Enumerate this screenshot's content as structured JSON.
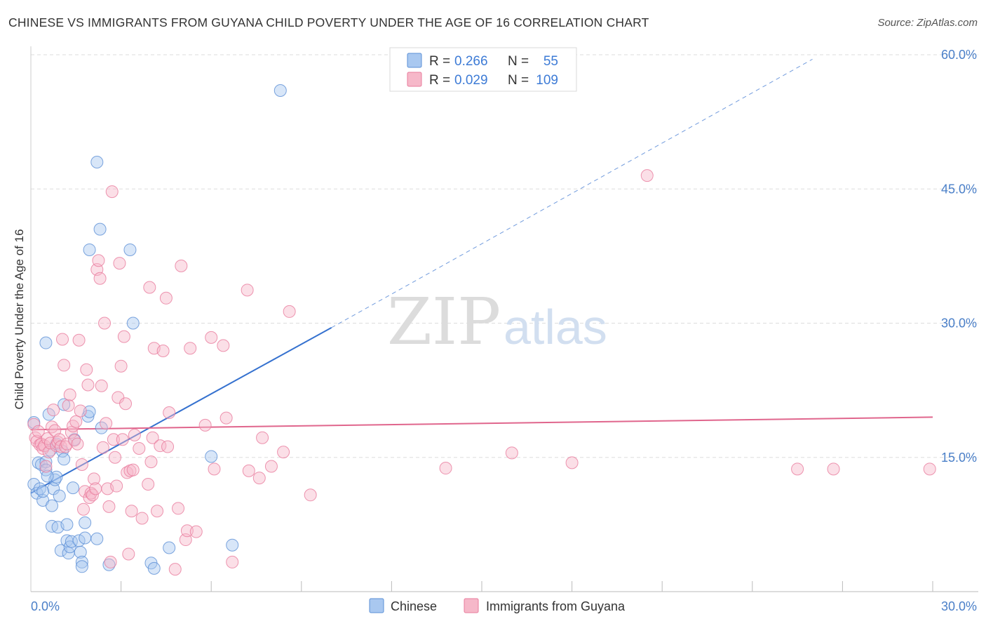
{
  "title": "CHINESE VS IMMIGRANTS FROM GUYANA CHILD POVERTY UNDER THE AGE OF 16 CORRELATION CHART",
  "source": "Source: ZipAtlas.com",
  "watermark": {
    "zip": "ZIP",
    "atlas": "atlas"
  },
  "colors": {
    "chinese_fill": "#a9c8f0",
    "chinese_stroke": "#5b8fd6",
    "chinese_line": "#3571cf",
    "guyana_fill": "#f6b8c9",
    "guyana_stroke": "#e87b9c",
    "guyana_line": "#e0668d",
    "grid": "#dddddd",
    "tick_label": "#4a7fc8"
  },
  "legend": {
    "rows": [
      {
        "r_label": "R =",
        "r_value": "0.266",
        "n_label": "N =",
        "n_value": "55"
      },
      {
        "r_label": "R =",
        "r_value": "0.029",
        "n_label": "N =",
        "n_value": "109"
      }
    ]
  },
  "chart_data": {
    "type": "scatter",
    "title": "CHINESE VS IMMIGRANTS FROM GUYANA CHILD POVERTY UNDER THE AGE OF 16 CORRELATION CHART",
    "xlabel": "",
    "ylabel": "Child Poverty Under the Age of 16",
    "xlim": [
      0,
      30
    ],
    "ylim": [
      0,
      60
    ],
    "x_tick_labels": [
      "0.0%",
      "30.0%"
    ],
    "y_ticks": [
      15,
      30,
      45,
      60
    ],
    "y_tick_labels": [
      "15.0%",
      "30.0%",
      "45.0%",
      "60.0%"
    ],
    "x_gridlines": [
      3,
      6,
      9,
      12,
      15,
      18,
      21,
      24,
      27,
      30
    ],
    "y_gridlines": [
      15,
      30,
      45,
      60
    ],
    "legend_position": "top-center",
    "series": [
      {
        "name": "Chinese",
        "color_key": "chinese",
        "trend": {
          "x0": 0,
          "y0": 11.0,
          "x1": 10.0,
          "y1": 29.5,
          "dash_to_x": 26.0,
          "dash_to_y": 59.5
        },
        "points": [
          [
            0.1,
            18.9
          ],
          [
            0.1,
            12.0
          ],
          [
            0.2,
            11.0
          ],
          [
            0.3,
            11.5
          ],
          [
            0.25,
            14.4
          ],
          [
            0.35,
            14.2
          ],
          [
            0.5,
            14.5
          ],
          [
            0.4,
            10.2
          ],
          [
            0.5,
            13.6
          ],
          [
            0.5,
            27.8
          ],
          [
            0.6,
            19.8
          ],
          [
            0.65,
            15.8
          ],
          [
            0.7,
            9.6
          ],
          [
            0.7,
            7.3
          ],
          [
            0.75,
            11.5
          ],
          [
            0.8,
            12.5
          ],
          [
            0.85,
            16.5
          ],
          [
            0.85,
            12.8
          ],
          [
            0.9,
            7.2
          ],
          [
            0.95,
            10.7
          ],
          [
            1.0,
            4.6
          ],
          [
            1.05,
            15.7
          ],
          [
            1.1,
            14.8
          ],
          [
            1.1,
            20.9
          ],
          [
            1.2,
            5.7
          ],
          [
            1.2,
            7.5
          ],
          [
            1.25,
            4.3
          ],
          [
            1.3,
            5.0
          ],
          [
            1.35,
            5.6
          ],
          [
            1.4,
            11.6
          ],
          [
            1.45,
            17.0
          ],
          [
            1.6,
            5.7
          ],
          [
            1.65,
            4.4
          ],
          [
            1.7,
            3.3
          ],
          [
            1.7,
            2.8
          ],
          [
            1.8,
            6.0
          ],
          [
            1.8,
            7.7
          ],
          [
            1.9,
            19.6
          ],
          [
            1.95,
            20.1
          ],
          [
            1.95,
            38.2
          ],
          [
            2.2,
            5.9
          ],
          [
            2.2,
            48.0
          ],
          [
            2.3,
            40.5
          ],
          [
            2.35,
            18.3
          ],
          [
            2.6,
            3.0
          ],
          [
            3.3,
            38.2
          ],
          [
            3.4,
            30.0
          ],
          [
            4.0,
            3.2
          ],
          [
            4.1,
            2.6
          ],
          [
            4.6,
            4.9
          ],
          [
            6.0,
            15.1
          ],
          [
            6.7,
            5.2
          ],
          [
            8.3,
            56.0
          ],
          [
            0.4,
            11.2
          ],
          [
            0.55,
            12.9
          ]
        ]
      },
      {
        "name": "Immigrants from Guyana",
        "color_key": "guyana",
        "trend": {
          "x0": 0,
          "y0": 18.1,
          "x1": 30.0,
          "y1": 19.5
        },
        "points": [
          [
            0.1,
            18.7
          ],
          [
            0.15,
            17.2
          ],
          [
            0.2,
            16.8
          ],
          [
            0.25,
            17.9
          ],
          [
            0.3,
            16.4
          ],
          [
            0.35,
            16.5
          ],
          [
            0.4,
            16.0
          ],
          [
            0.45,
            16.3
          ],
          [
            0.5,
            14.0
          ],
          [
            0.55,
            17.1
          ],
          [
            0.6,
            15.6
          ],
          [
            0.65,
            16.6
          ],
          [
            0.7,
            18.4
          ],
          [
            0.75,
            20.3
          ],
          [
            0.8,
            18.0
          ],
          [
            0.85,
            16.3
          ],
          [
            0.9,
            16.7
          ],
          [
            0.95,
            17.0
          ],
          [
            1.0,
            16.2
          ],
          [
            1.05,
            28.2
          ],
          [
            1.1,
            25.3
          ],
          [
            1.15,
            16.2
          ],
          [
            1.2,
            16.5
          ],
          [
            1.25,
            20.8
          ],
          [
            1.3,
            22.0
          ],
          [
            1.35,
            17.8
          ],
          [
            1.4,
            18.5
          ],
          [
            1.45,
            16.9
          ],
          [
            1.5,
            19.0
          ],
          [
            1.55,
            16.5
          ],
          [
            1.6,
            28.1
          ],
          [
            1.65,
            20.2
          ],
          [
            1.7,
            14.2
          ],
          [
            1.75,
            9.2
          ],
          [
            1.8,
            11.2
          ],
          [
            1.85,
            24.8
          ],
          [
            1.9,
            23.1
          ],
          [
            1.95,
            10.5
          ],
          [
            2.0,
            11.0
          ],
          [
            2.05,
            10.8
          ],
          [
            2.1,
            12.6
          ],
          [
            2.15,
            11.5
          ],
          [
            2.2,
            36.0
          ],
          [
            2.25,
            37.0
          ],
          [
            2.3,
            35.0
          ],
          [
            2.35,
            23.0
          ],
          [
            2.4,
            16.1
          ],
          [
            2.45,
            30.0
          ],
          [
            2.5,
            18.8
          ],
          [
            2.55,
            11.5
          ],
          [
            2.6,
            9.5
          ],
          [
            2.65,
            3.3
          ],
          [
            2.7,
            44.7
          ],
          [
            2.75,
            17.0
          ],
          [
            2.8,
            15.0
          ],
          [
            2.85,
            11.8
          ],
          [
            2.9,
            21.7
          ],
          [
            2.95,
            36.7
          ],
          [
            3.0,
            25.2
          ],
          [
            3.05,
            17.0
          ],
          [
            3.1,
            28.5
          ],
          [
            3.15,
            21.0
          ],
          [
            3.2,
            13.3
          ],
          [
            3.25,
            4.2
          ],
          [
            3.3,
            13.5
          ],
          [
            3.35,
            9.0
          ],
          [
            3.4,
            13.6
          ],
          [
            3.45,
            17.5
          ],
          [
            3.6,
            16.0
          ],
          [
            3.7,
            8.2
          ],
          [
            3.9,
            12.0
          ],
          [
            3.95,
            34.0
          ],
          [
            4.0,
            14.5
          ],
          [
            4.05,
            17.2
          ],
          [
            4.1,
            27.2
          ],
          [
            4.2,
            9.0
          ],
          [
            4.3,
            16.3
          ],
          [
            4.4,
            26.9
          ],
          [
            4.5,
            32.8
          ],
          [
            4.55,
            16.2
          ],
          [
            4.6,
            20.0
          ],
          [
            4.8,
            2.5
          ],
          [
            4.9,
            9.3
          ],
          [
            5.0,
            36.4
          ],
          [
            5.15,
            5.8
          ],
          [
            5.2,
            6.8
          ],
          [
            5.3,
            27.2
          ],
          [
            5.5,
            6.7
          ],
          [
            5.8,
            18.6
          ],
          [
            6.0,
            28.4
          ],
          [
            6.1,
            13.7
          ],
          [
            6.4,
            27.5
          ],
          [
            6.5,
            19.4
          ],
          [
            6.7,
            3.3
          ],
          [
            7.2,
            33.7
          ],
          [
            7.25,
            13.5
          ],
          [
            7.6,
            12.7
          ],
          [
            7.7,
            17.2
          ],
          [
            8.0,
            14.0
          ],
          [
            8.4,
            15.6
          ],
          [
            8.6,
            31.3
          ],
          [
            9.3,
            10.8
          ],
          [
            13.8,
            13.8
          ],
          [
            16.0,
            15.5
          ],
          [
            18.0,
            14.4
          ],
          [
            20.5,
            46.5
          ],
          [
            25.5,
            13.7
          ],
          [
            26.7,
            13.7
          ],
          [
            29.9,
            13.7
          ]
        ]
      }
    ]
  },
  "bottom_legend": {
    "items": [
      {
        "label": "Chinese"
      },
      {
        "label": "Immigrants from Guyana"
      }
    ]
  }
}
